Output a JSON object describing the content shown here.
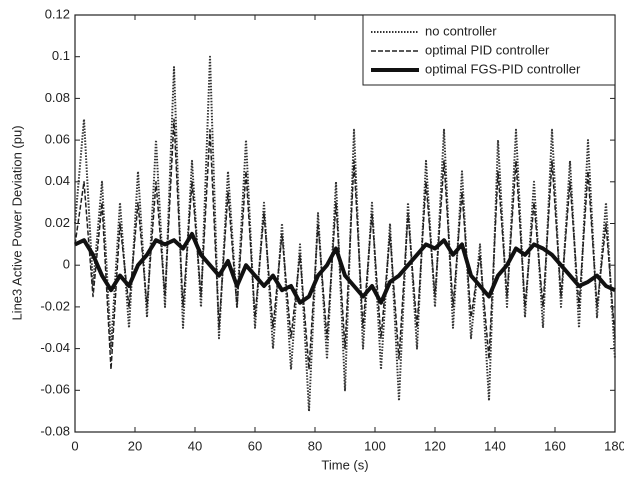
{
  "chart_data": {
    "type": "line",
    "xlabel": "Time (s)",
    "ylabel": "Line3 Active Power Deviation (pu)",
    "x": [
      0,
      3,
      6,
      9,
      12,
      15,
      18,
      21,
      24,
      27,
      30,
      33,
      36,
      39,
      42,
      45,
      48,
      51,
      54,
      57,
      60,
      63,
      66,
      69,
      72,
      75,
      78,
      81,
      84,
      87,
      90,
      93,
      96,
      99,
      102,
      105,
      108,
      111,
      114,
      117,
      120,
      123,
      126,
      129,
      132,
      135,
      138,
      141,
      144,
      147,
      150,
      153,
      156,
      159,
      162,
      165,
      168,
      171,
      174,
      177,
      180
    ],
    "series": [
      {
        "name": "no controller",
        "color": "#333333",
        "style": "dotted",
        "values": [
          0.02,
          0.07,
          -0.01,
          0.04,
          -0.04,
          0.03,
          -0.03,
          0.045,
          -0.025,
          0.06,
          -0.02,
          0.095,
          -0.03,
          0.05,
          -0.02,
          0.1,
          -0.035,
          0.045,
          -0.02,
          0.06,
          -0.03,
          0.03,
          -0.04,
          0.02,
          -0.05,
          0.01,
          -0.07,
          0.025,
          -0.045,
          0.04,
          -0.06,
          0.065,
          -0.04,
          0.03,
          -0.05,
          0.02,
          -0.065,
          0.03,
          -0.04,
          0.05,
          -0.02,
          0.065,
          -0.03,
          0.045,
          -0.035,
          0.01,
          -0.065,
          0.06,
          -0.02,
          0.065,
          -0.025,
          0.04,
          -0.03,
          0.065,
          -0.02,
          0.05,
          -0.03,
          0.06,
          -0.025,
          0.03,
          -0.045
        ]
      },
      {
        "name": "optimal PID controller",
        "color": "#222222",
        "style": "dashed",
        "values": [
          0.01,
          0.04,
          -0.015,
          0.03,
          -0.05,
          0.02,
          -0.02,
          0.03,
          -0.02,
          0.04,
          -0.015,
          0.07,
          -0.02,
          0.04,
          -0.015,
          0.065,
          -0.03,
          0.035,
          -0.02,
          0.045,
          -0.025,
          0.025,
          -0.03,
          0.015,
          -0.035,
          0.005,
          -0.05,
          0.02,
          -0.035,
          0.03,
          -0.04,
          0.05,
          -0.03,
          0.025,
          -0.035,
          0.015,
          -0.045,
          0.025,
          -0.03,
          0.04,
          -0.015,
          0.05,
          -0.02,
          0.035,
          -0.025,
          0.005,
          -0.045,
          0.045,
          -0.015,
          0.05,
          -0.02,
          0.03,
          -0.02,
          0.05,
          -0.015,
          0.04,
          -0.02,
          0.045,
          -0.02,
          0.02,
          -0.035
        ]
      },
      {
        "name": "optimal FGS-PID controller",
        "color": "#111111",
        "style": "thick",
        "values": [
          0.01,
          0.012,
          0.005,
          -0.005,
          -0.012,
          -0.005,
          -0.01,
          0.0,
          0.005,
          0.012,
          0.01,
          0.012,
          0.008,
          0.015,
          0.005,
          0.0,
          -0.005,
          0.002,
          -0.01,
          0.0,
          -0.005,
          -0.01,
          -0.005,
          -0.012,
          -0.01,
          -0.018,
          -0.015,
          -0.005,
          0.0,
          0.008,
          -0.005,
          -0.01,
          -0.015,
          -0.01,
          -0.018,
          -0.008,
          -0.005,
          0.0,
          0.005,
          0.01,
          0.008,
          0.012,
          0.005,
          0.01,
          -0.005,
          -0.01,
          -0.015,
          -0.005,
          0.0,
          0.008,
          0.005,
          0.01,
          0.008,
          0.005,
          0.0,
          -0.005,
          -0.01,
          -0.008,
          -0.005,
          -0.01,
          -0.012
        ]
      }
    ],
    "xlim": [
      0,
      180
    ],
    "xticks": [
      0,
      20,
      40,
      60,
      80,
      100,
      120,
      140,
      160,
      180
    ],
    "ylim": [
      -0.08,
      0.12
    ],
    "yticks": [
      -0.08,
      -0.06,
      -0.04,
      -0.02,
      0,
      0.02,
      0.04,
      0.06,
      0.08,
      0.1,
      0.12
    ],
    "legend": "upper right",
    "grid": false
  }
}
